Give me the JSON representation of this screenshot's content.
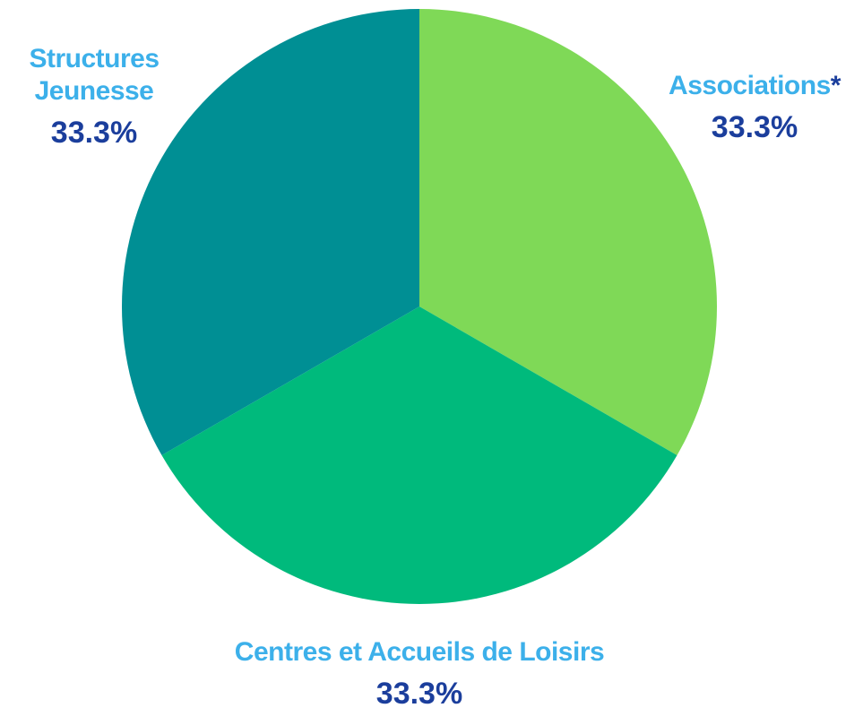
{
  "chart_data": {
    "type": "pie",
    "categories": [
      "Associations",
      "Centres et Accueils de Loisirs",
      "Structures Jeunesse"
    ],
    "values": [
      33.3,
      33.3,
      33.3
    ],
    "value_labels": [
      "33.3%",
      "33.3%",
      "33.3%"
    ],
    "colors": [
      "#7fd957",
      "#00ba7c",
      "#008f94"
    ],
    "footnote_mark": "*"
  }
}
